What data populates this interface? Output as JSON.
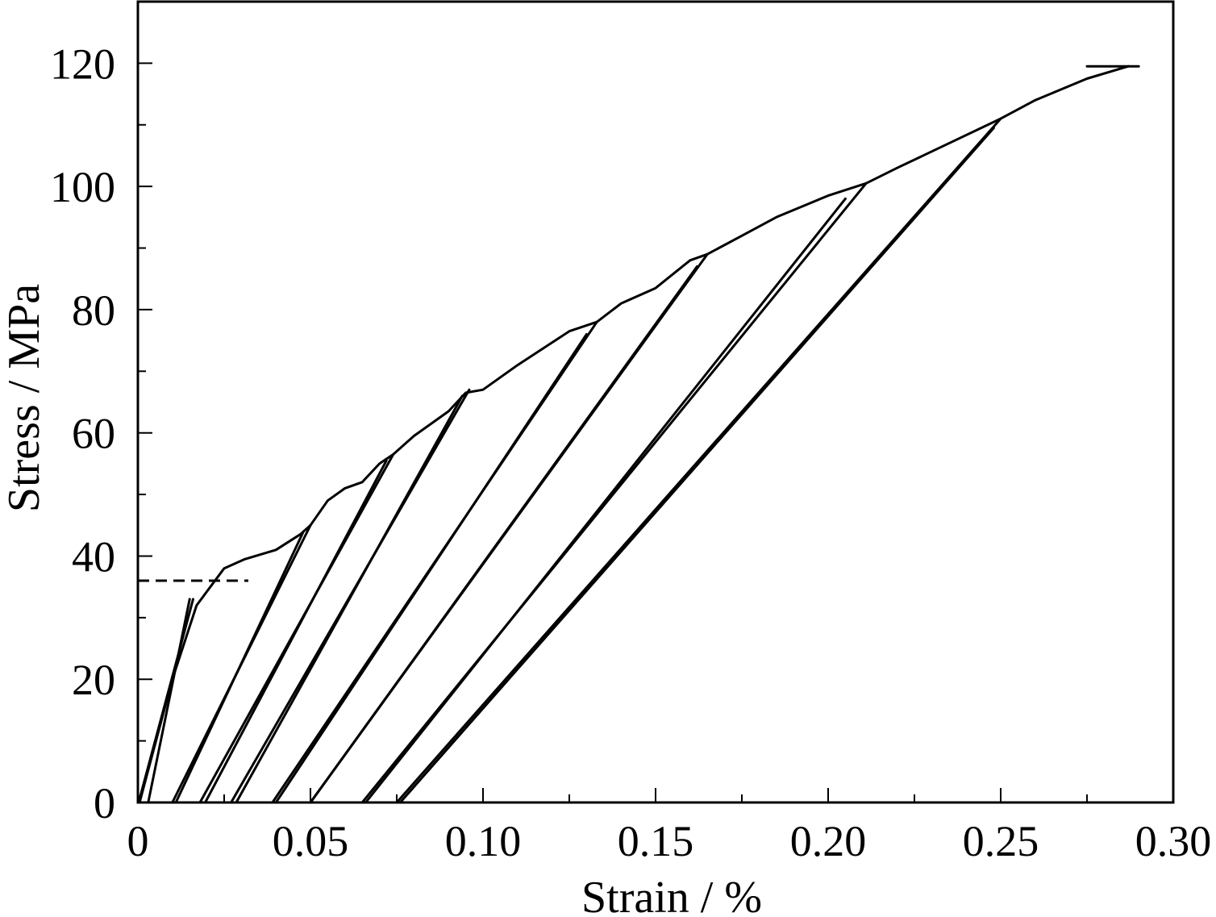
{
  "chart_data": {
    "type": "line",
    "title": "",
    "xlabel": "Strain / %",
    "ylabel": "Stress / MPa",
    "xlim": [
      0,
      0.3
    ],
    "ylim": [
      0,
      130
    ],
    "x_ticks": [
      0,
      0.05,
      0.1,
      0.15,
      0.2,
      0.25,
      0.3
    ],
    "x_tick_labels": [
      "0",
      "0.05",
      "0.10",
      "0.15",
      "0.20",
      "0.25",
      "0.30"
    ],
    "y_ticks": [
      0,
      20,
      40,
      60,
      80,
      100,
      120
    ],
    "y_tick_labels": [
      "0",
      "20",
      "40",
      "60",
      "80",
      "100",
      "120"
    ],
    "grid": false,
    "legend": "none",
    "line_color": "#000000",
    "series": [
      {
        "style": "solid",
        "points": [
          [
            0.0005,
            0
          ],
          [
            0.01,
            20
          ],
          [
            0.017,
            32
          ],
          [
            0.025,
            38
          ],
          [
            0.031,
            39.5
          ],
          [
            0.04,
            41
          ],
          [
            0.047,
            43.5
          ],
          [
            0.05,
            45
          ],
          [
            0.055,
            49
          ],
          [
            0.06,
            51
          ],
          [
            0.065,
            52
          ],
          [
            0.07,
            55
          ],
          [
            0.074,
            56.5
          ],
          [
            0.08,
            59.5
          ],
          [
            0.09,
            63.5
          ],
          [
            0.095,
            66.5
          ],
          [
            0.1,
            67
          ],
          [
            0.11,
            71
          ],
          [
            0.125,
            76.5
          ],
          [
            0.133,
            78
          ],
          [
            0.14,
            81
          ],
          [
            0.15,
            83.5
          ],
          [
            0.16,
            88
          ],
          [
            0.165,
            89
          ],
          [
            0.175,
            92
          ],
          [
            0.185,
            95
          ],
          [
            0.2,
            98.5
          ],
          [
            0.211,
            100.5
          ],
          [
            0.22,
            103
          ],
          [
            0.235,
            107
          ],
          [
            0.25,
            111
          ],
          [
            0.26,
            114
          ],
          [
            0.275,
            117.5
          ],
          [
            0.287,
            119.5
          ]
        ]
      },
      {
        "style": "solid",
        "points": [
          [
            0.0002,
            0
          ],
          [
            0.016,
            33
          ]
        ]
      },
      {
        "style": "solid",
        "points": [
          [
            0.015,
            33
          ],
          [
            0.003,
            0
          ]
        ]
      },
      {
        "style": "solid",
        "points": [
          [
            0.01,
            0
          ],
          [
            0.05,
            45
          ]
        ]
      },
      {
        "style": "solid",
        "points": [
          [
            0.048,
            44
          ],
          [
            0.011,
            0
          ]
        ]
      },
      {
        "style": "solid",
        "points": [
          [
            0.018,
            0
          ],
          [
            0.074,
            56.5
          ]
        ]
      },
      {
        "style": "solid",
        "points": [
          [
            0.072,
            55.5
          ],
          [
            0.0195,
            0
          ]
        ]
      },
      {
        "style": "solid",
        "points": [
          [
            0.027,
            0
          ],
          [
            0.096,
            67
          ]
        ]
      },
      {
        "style": "solid",
        "points": [
          [
            0.094,
            66
          ],
          [
            0.0285,
            0
          ]
        ]
      },
      {
        "style": "solid",
        "points": [
          [
            0.039,
            0
          ],
          [
            0.133,
            78
          ]
        ]
      },
      {
        "style": "solid",
        "points": [
          [
            0.13,
            76
          ],
          [
            0.04,
            0
          ]
        ]
      },
      {
        "style": "solid",
        "points": [
          [
            0.05,
            0
          ],
          [
            0.165,
            89
          ]
        ]
      },
      {
        "style": "solid",
        "points": [
          [
            0.162,
            87
          ],
          [
            0.05,
            0
          ]
        ]
      },
      {
        "style": "solid",
        "points": [
          [
            0.065,
            0
          ],
          [
            0.211,
            100.5
          ]
        ]
      },
      {
        "style": "solid",
        "points": [
          [
            0.205,
            98
          ],
          [
            0.066,
            0
          ]
        ]
      },
      {
        "style": "solid",
        "points": [
          [
            0.075,
            0
          ],
          [
            0.25,
            111
          ]
        ]
      },
      {
        "style": "solid",
        "points": [
          [
            0.248,
            109.5
          ],
          [
            0.076,
            0
          ]
        ]
      },
      {
        "style": "solid",
        "points": [
          [
            0.275,
            119.5
          ],
          [
            0.29,
            119.5
          ]
        ]
      },
      {
        "style": "dashed",
        "points": [
          [
            0,
            36
          ],
          [
            0.032,
            36
          ]
        ]
      }
    ]
  }
}
